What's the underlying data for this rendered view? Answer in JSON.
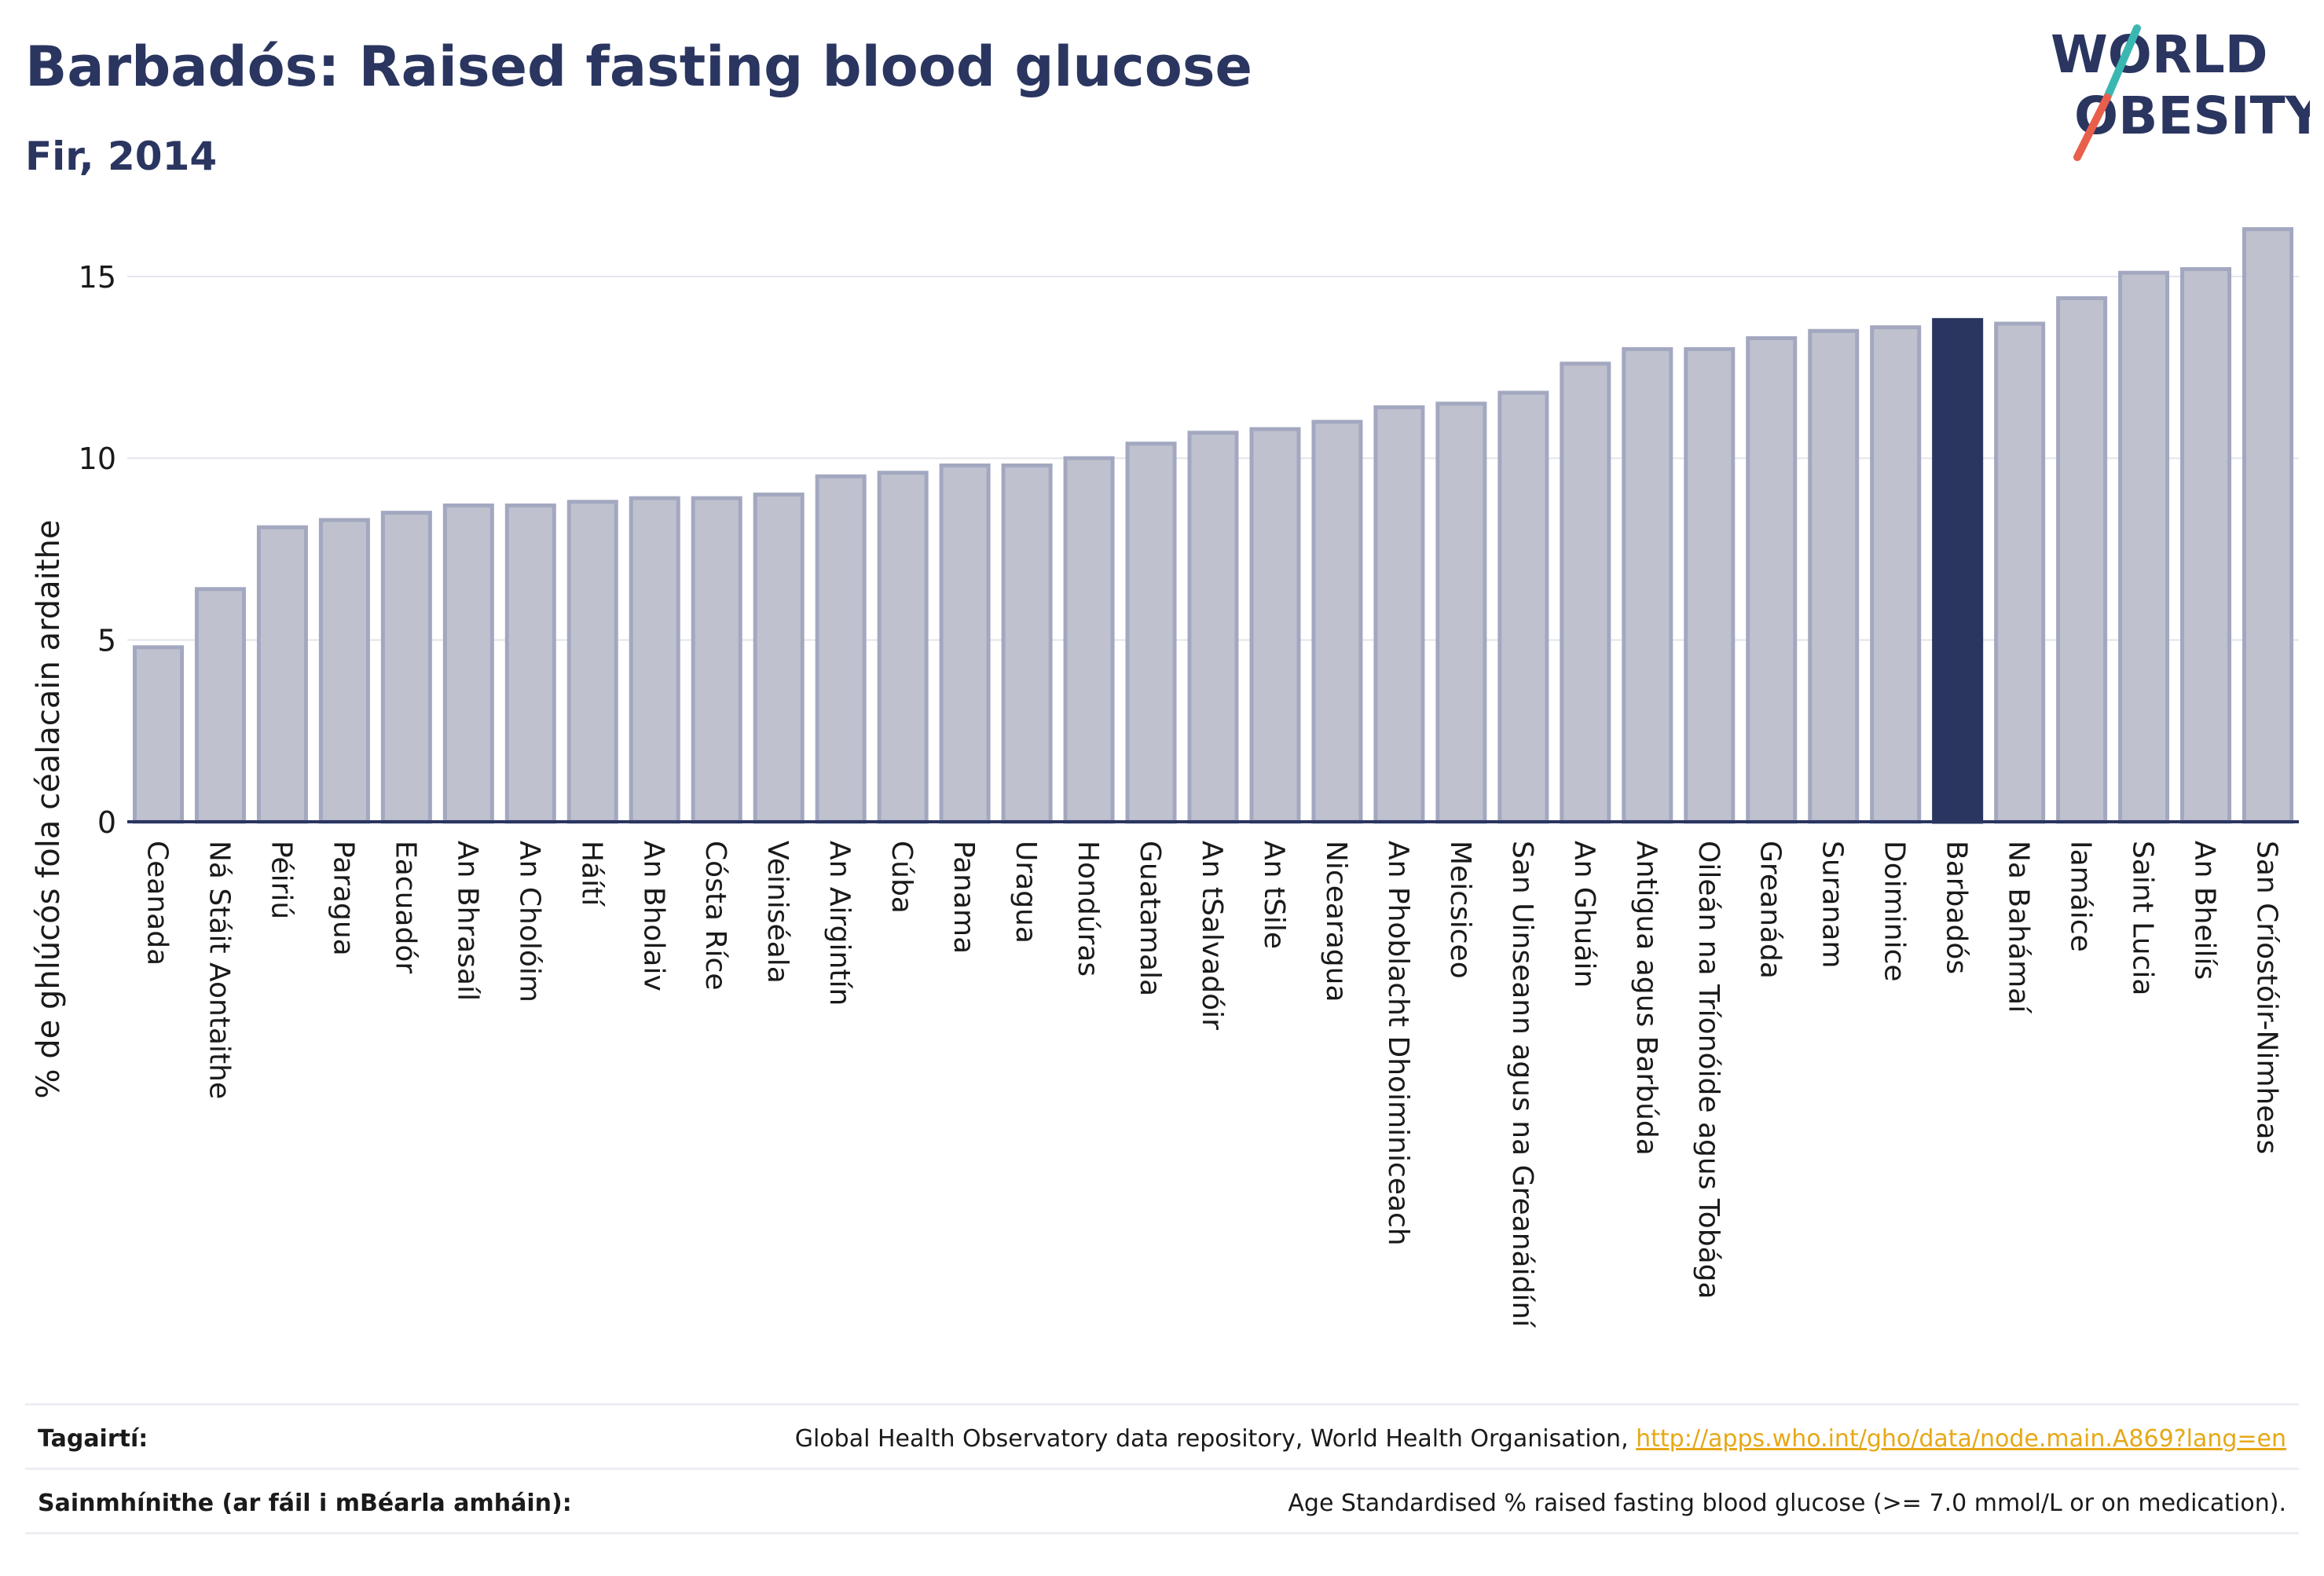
{
  "header": {
    "title": "Barbadós: Raised fasting blood glucose",
    "subtitle": "Fir, 2014"
  },
  "logo": {
    "line1": "WORLD",
    "line2": "OBESITY"
  },
  "colors": {
    "highlight": "#2a3560",
    "bar_fill": "#bfc2ce",
    "bar_stroke": "#a3a8c0",
    "logo_teal": "#3ab7b0",
    "logo_red": "#e8604c",
    "link": "#e6a817"
  },
  "chart_data": {
    "type": "bar",
    "ylabel": "% de ghlúcós fola céalacain ardaithe",
    "xlabel": "",
    "ylim": [
      0,
      17.2
    ],
    "yticks": [
      0,
      5,
      10,
      15
    ],
    "grid": true,
    "highlight_category": "Barbadós",
    "categories": [
      "Ceanada",
      "Ná Stáit Aontaithe",
      "Péiriú",
      "Paragua",
      "Eacuadór",
      "An Bhrasaíl",
      "An Cholóim",
      "Háítí",
      "An Bholaiv",
      "Cósta Ríce",
      "Veiniséala",
      "An Airgintín",
      "Cúba",
      "Panama",
      "Uragua",
      "Hondúras",
      "Guatamala",
      "An tSalvadóir",
      "An tSile",
      "Nicearagua",
      "An Phoblacht Dhoiminiceach",
      "Meicsiceo",
      "San Uinseann agus na Greanáidíní",
      "An Ghuáin",
      "Antigua agus Barbúda",
      "Oileán na Tríonóide agus Tobága",
      "Greanáda",
      "Suranam",
      "Doiminice",
      "Barbadós",
      "Na Bahámaí",
      "Iamáice",
      "Saint Lucia",
      "An Bheilís",
      "San Críostóir-Nimheas"
    ],
    "values": [
      4.8,
      6.4,
      8.1,
      8.3,
      8.5,
      8.7,
      8.7,
      8.8,
      8.9,
      8.9,
      9.0,
      9.5,
      9.6,
      9.8,
      9.8,
      10.0,
      10.4,
      10.7,
      10.8,
      11.0,
      11.4,
      11.5,
      11.8,
      12.6,
      13.0,
      13.0,
      13.3,
      13.5,
      13.6,
      13.8,
      13.7,
      14.4,
      15.1,
      15.2,
      16.3
    ]
  },
  "footer": {
    "references_label": "Tagairtí:",
    "references_text": "Global Health Observatory data repository, World Health Organisation, ",
    "references_link": "http://apps.who.int/gho/data/node.main.A869?lang=en",
    "definitions_label": "Sainmhínithe (ar fáil i mBéarla amháin):",
    "definitions_text": "Age Standardised % raised fasting blood glucose (>= 7.0 mmol/L or on medication)."
  }
}
